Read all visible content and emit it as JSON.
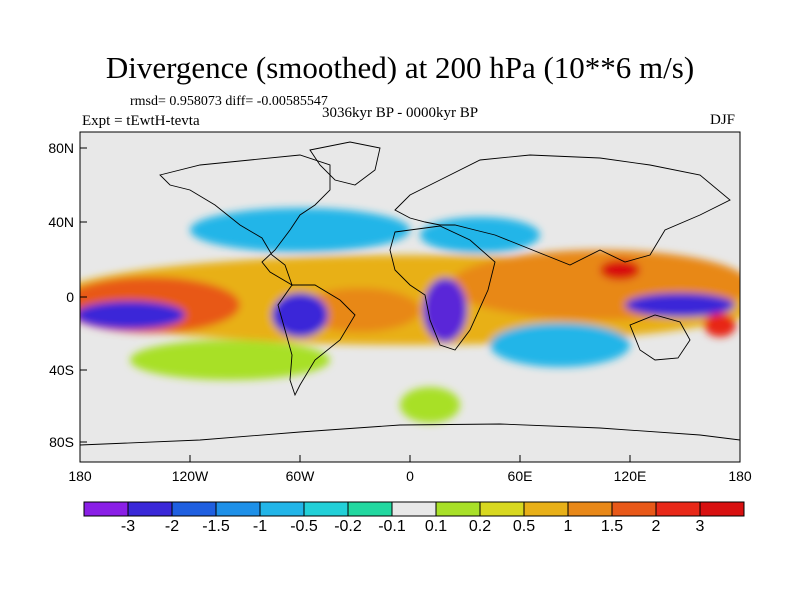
{
  "figure": {
    "title": "Divergence (smoothed) at 200 hPa (10**6 m/s)",
    "stats": "rmsd= 0.958073 diff= -0.00585547",
    "experiment": "Expt = tEwtH-tevta",
    "period": "3036kyr BP - 0000kyr BP",
    "season": "DJF"
  },
  "axes": {
    "y_ticks": [
      "80N",
      "40N",
      "0",
      "40S",
      "80S"
    ],
    "x_ticks": [
      "180",
      "120W",
      "60W",
      "0",
      "60E",
      "120E",
      "180"
    ]
  },
  "colorbar": {
    "labels": [
      "-3",
      "-2",
      "-1.5",
      "-1",
      "-0.5",
      "-0.2",
      "-0.1",
      "0.1",
      "0.2",
      "0.5",
      "1",
      "1.5",
      "2",
      "3"
    ],
    "colors": [
      "#8a1fe6",
      "#3a28d8",
      "#1f5fe0",
      "#1e90e8",
      "#22b5e8",
      "#22d0d8",
      "#22d8a0",
      "#e8e8e8",
      "#a8e028",
      "#d8d820",
      "#e8b018",
      "#e88818",
      "#e85818",
      "#e82818",
      "#d81010"
    ]
  },
  "colors": {
    "background": "#e8e8e8",
    "frame": "#000000"
  }
}
